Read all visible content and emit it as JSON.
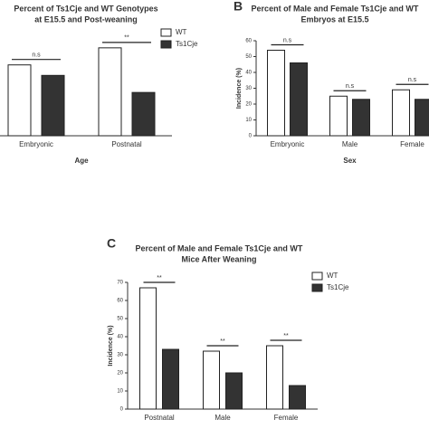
{
  "chart_data": [
    {
      "type": "bar",
      "title": [
        "Percent of Ts1Cje and WT Genotypes",
        "at E15.5 and Post-weaning"
      ],
      "categories": [
        "Embryonic",
        "Postnatal"
      ],
      "xlabel": "Age",
      "series": [
        {
          "name": "WT",
          "color": "#ffffff",
          "values": [
            54,
            67
          ]
        },
        {
          "name": "Ts1Cje",
          "color": "#333333",
          "values": [
            46,
            33
          ]
        }
      ],
      "annotations": [
        "n.s",
        "**"
      ],
      "ylim": [
        0,
        70
      ],
      "legend": true
    },
    {
      "type": "bar",
      "panel": "B",
      "title": [
        "Percent of Male and Female Ts1Cje and WT",
        "Embryos at E15.5"
      ],
      "categories": [
        "Embryonic",
        "Male",
        "Female"
      ],
      "xlabel": "Sex",
      "ylabel": "Incidence (%)",
      "series": [
        {
          "name": "WT",
          "color": "#ffffff",
          "values": [
            54,
            25,
            29
          ]
        },
        {
          "name": "Ts1Cje",
          "color": "#333333",
          "values": [
            46,
            23,
            23
          ]
        }
      ],
      "annotations": [
        "n.s",
        "n.s",
        "n.s"
      ],
      "ylim": [
        0,
        60
      ],
      "yticks": [
        0,
        10,
        20,
        30,
        40,
        50,
        60
      ],
      "legend": false
    },
    {
      "type": "bar",
      "panel": "C",
      "title": [
        "Percent of Male and Female Ts1Cje and WT",
        "Mice After Weaning"
      ],
      "categories": [
        "Postnatal",
        "Male",
        "Female"
      ],
      "xlabel": "Sex",
      "ylabel": "Incidence (%)",
      "series": [
        {
          "name": "WT",
          "color": "#ffffff",
          "values": [
            67,
            32,
            35
          ]
        },
        {
          "name": "Ts1Cje",
          "color": "#333333",
          "values": [
            33,
            20,
            13
          ]
        }
      ],
      "annotations": [
        "**",
        "**",
        "**"
      ],
      "ylim": [
        0,
        70
      ],
      "yticks": [
        0,
        10,
        20,
        30,
        40,
        50,
        60,
        70
      ],
      "legend": true
    }
  ]
}
